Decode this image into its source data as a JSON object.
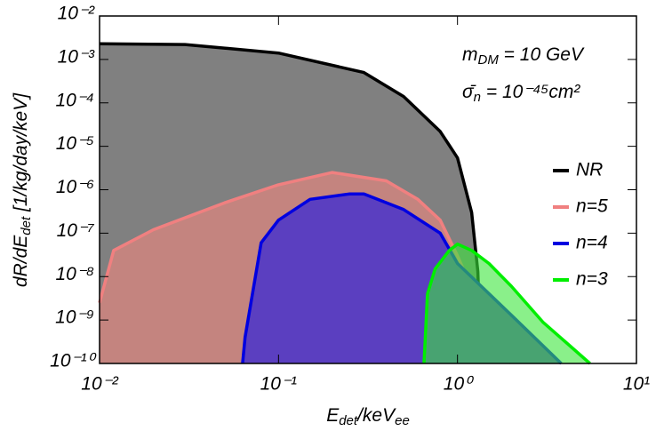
{
  "chart_data": {
    "type": "area",
    "x_label": {
      "base": "E",
      "sub": "det",
      "mid": "/keV",
      "sub2": "ee"
    },
    "y_label": {
      "base": "dR/dE",
      "sub": "det",
      "tail": " [1/kg/day/keV]"
    },
    "annotation_1": {
      "base": "m",
      "sub": "DM",
      "tail": " = 10 GeV"
    },
    "annotation_2": {
      "base": "σ̄",
      "sub": "n",
      "tail": " = 10⁻⁴⁵cm²"
    },
    "log_x": true,
    "log_y": true,
    "xlim": [
      0.01,
      10
    ],
    "ylim": [
      1e-10,
      0.01
    ],
    "xticks": [
      {
        "value": 0.01,
        "label": "10⁻²"
      },
      {
        "value": 0.1,
        "label": "10⁻¹"
      },
      {
        "value": 1,
        "label": "10⁰"
      },
      {
        "value": 10,
        "label": "10¹"
      }
    ],
    "yticks": [
      {
        "value": 1e-10,
        "label": "10⁻¹⁰"
      },
      {
        "value": 1e-09,
        "label": "10⁻⁹"
      },
      {
        "value": 1e-08,
        "label": "10⁻⁸"
      },
      {
        "value": 1e-07,
        "label": "10⁻⁷"
      },
      {
        "value": 1e-06,
        "label": "10⁻⁶"
      },
      {
        "value": 1e-05,
        "label": "10⁻⁵"
      },
      {
        "value": 0.0001,
        "label": "10⁻⁴"
      },
      {
        "value": 0.001,
        "label": "10⁻³"
      },
      {
        "value": 0.01,
        "label": "10⁻²"
      }
    ],
    "legend_position": "right",
    "series": [
      {
        "name": "NR",
        "color": "#000000",
        "fill": "#808080",
        "x": [
          0.01,
          0.03,
          0.1,
          0.3,
          0.5,
          0.8,
          1.0,
          1.2,
          1.3,
          1.35
        ],
        "values": [
          0.0023,
          0.0022,
          0.0014,
          0.0005,
          0.00014,
          2.2e-05,
          5.4e-06,
          3e-07,
          1.3e-08,
          1e-10
        ]
      },
      {
        "name": "n=5",
        "color": "#f08080",
        "fill": "#c4847f",
        "x": [
          0.01,
          0.012,
          0.02,
          0.05,
          0.1,
          0.2,
          0.4,
          0.6,
          0.8,
          1.0,
          1.3,
          1.8,
          2.0
        ],
        "values": [
          2.5e-09,
          4e-08,
          1.2e-07,
          5e-07,
          1.3e-06,
          2.5e-06,
          1.6e-06,
          6e-07,
          2e-07,
          3e-08,
          2.5e-09,
          2.5e-10,
          1e-10
        ]
      },
      {
        "name": "n=4",
        "color": "#0000e0",
        "fill": "#5b3fc0",
        "x": [
          0.063,
          0.065,
          0.08,
          0.1,
          0.15,
          0.25,
          0.3,
          0.5,
          0.8,
          1.0,
          2.0,
          3.8
        ],
        "values": [
          1e-10,
          4e-10,
          6e-08,
          2e-07,
          6e-07,
          8e-07,
          8e-07,
          3.5e-07,
          1e-07,
          2e-08,
          1.3e-09,
          1e-10
        ]
      },
      {
        "name": "n=3",
        "color": "#00ee00",
        "fill": "rgba(60,230,60,0.6)",
        "x": [
          0.65,
          0.68,
          0.75,
          0.9,
          1.0,
          1.2,
          1.5,
          2.0,
          3.0,
          5.5
        ],
        "values": [
          1e-10,
          4e-09,
          1.5e-08,
          4e-08,
          5.6e-08,
          4e-08,
          2e-08,
          6e-09,
          9e-10,
          1e-10
        ]
      }
    ]
  }
}
